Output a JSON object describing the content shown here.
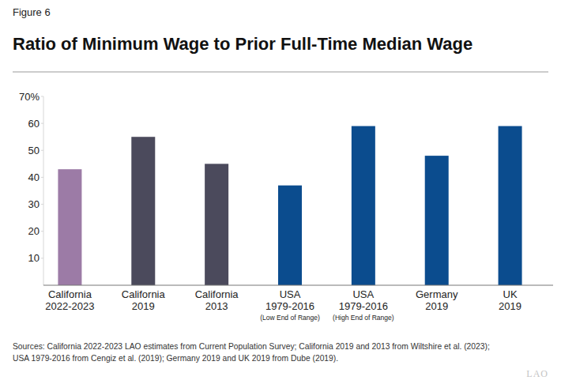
{
  "chart_data": {
    "type": "bar",
    "figure_number": "Figure 6",
    "title": "Ratio of Minimum Wage to Prior Full-Time Median Wage",
    "categories": [
      "California\n2022-2023",
      "California\n2019",
      "California\n2013",
      "USA\n1979-2016\n(Low End of Range)",
      "USA\n1979-2016\n(High End of Range)",
      "Germany\n2019",
      "UK\n2019"
    ],
    "values": [
      43,
      55,
      45,
      37,
      59,
      48,
      59
    ],
    "colors": [
      "#9c7ba6",
      "#4b4a5c",
      "#4b4a5c",
      "#0b4c8e",
      "#0b4c8e",
      "#0b4c8e",
      "#0b4c8e"
    ],
    "ylim": [
      0,
      70
    ],
    "yticks": [
      10,
      20,
      30,
      40,
      50,
      60,
      {
        "value": 70,
        "label": "70%"
      }
    ],
    "grid": false,
    "source": [
      "Sources: California 2022-2023 LAO estimates from Current Population Survey; California 2019 and 2013 from Wiltshire et al. (2023);",
      "USA 1979-2016 from Cengiz et al. (2019); Germany 2019 and UK 2019 from Dube (2019)."
    ],
    "logo": "LAO"
  }
}
